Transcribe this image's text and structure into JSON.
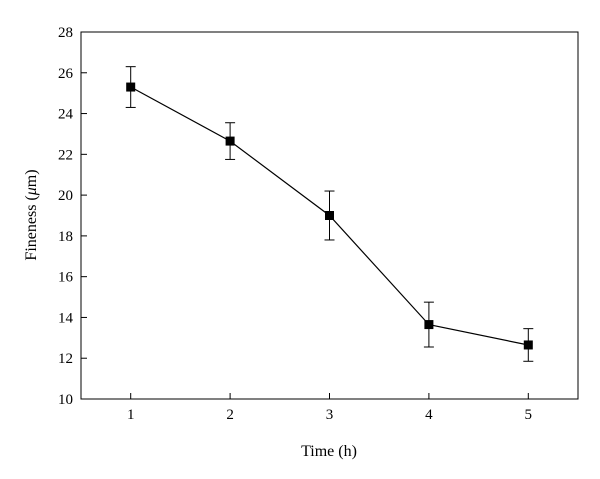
{
  "chart_data": {
    "type": "line",
    "xlabel": "Time (h)",
    "ylabel_prefix": "Fineness (",
    "ylabel_unit": "μ",
    "ylabel_suffix": "m)",
    "xlim": [
      0.5,
      5.5
    ],
    "ylim": [
      10,
      28
    ],
    "xticks": [
      1,
      2,
      3,
      4,
      5
    ],
    "yticks": [
      10,
      12,
      14,
      16,
      18,
      20,
      22,
      24,
      26,
      28
    ],
    "x": [
      1,
      2,
      3,
      4,
      5
    ],
    "y": [
      25.3,
      22.65,
      19.0,
      13.65,
      12.65
    ],
    "error": [
      1.0,
      0.9,
      1.2,
      1.1,
      0.8
    ],
    "grid": false,
    "marker": "square",
    "color": "#000000"
  }
}
